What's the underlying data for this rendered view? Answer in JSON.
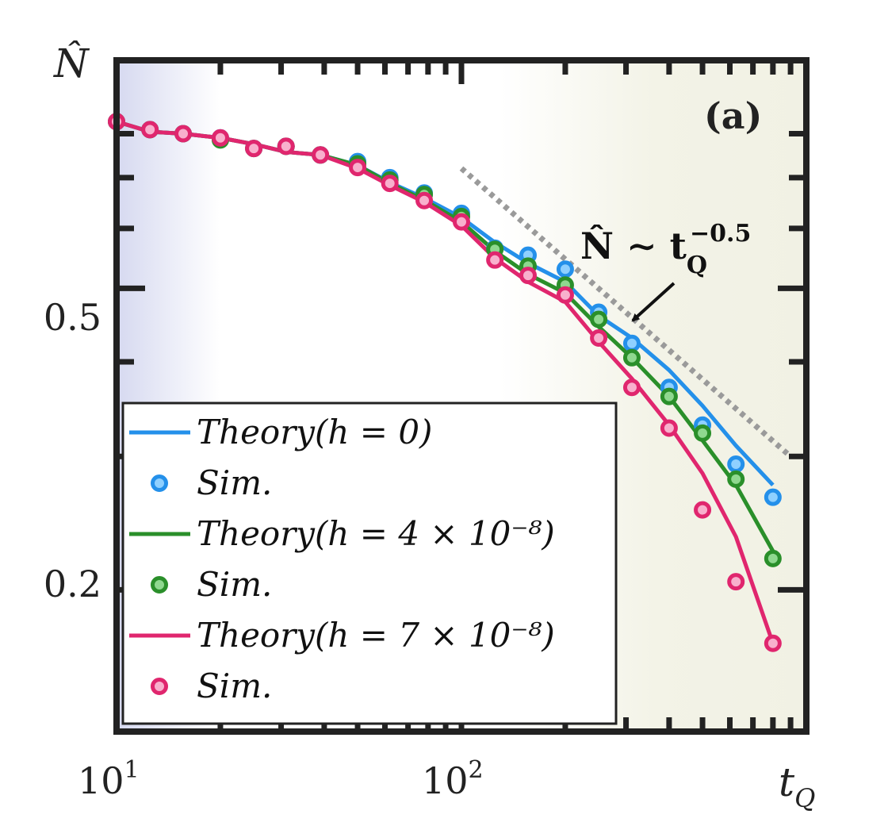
{
  "chart_data": {
    "type": "line",
    "panel_label": "(a)",
    "xlabel": "t",
    "xlabel_sub": "Q",
    "ylabel": "N̂",
    "x_scale": "log",
    "y_scale": "log",
    "xlim": [
      10,
      1000
    ],
    "ylim": [
      0.13,
      1.0
    ],
    "x_ticks": [
      {
        "value": 10,
        "base": "10",
        "exp": "1"
      },
      {
        "value": 100,
        "base": "10",
        "exp": "2"
      }
    ],
    "y_ticks": [
      {
        "value": 0.5,
        "label": "0.5"
      },
      {
        "value": 0.2,
        "label": "0.2"
      }
    ],
    "grid": false,
    "legend_position": "bottom-left",
    "annotation": {
      "text_main": "N̂ ∼ t",
      "text_sub": "Q",
      "text_sup": "−0.5",
      "guide_line": [
        [
          100,
          0.72
        ],
        [
          900,
          0.3
        ]
      ]
    },
    "series": [
      {
        "name": "Theory(h = 0)",
        "sim_name": "Sim.",
        "color": "#2490ea",
        "x": [
          10,
          12.5,
          15.6,
          20,
          25,
          31,
          39,
          50,
          62,
          78,
          100,
          125,
          156,
          200,
          250,
          312,
          400,
          500,
          625,
          800
        ],
        "theory": [
          0.83,
          0.805,
          0.8,
          0.79,
          0.775,
          0.757,
          0.75,
          0.727,
          0.69,
          0.658,
          0.62,
          0.575,
          0.54,
          0.51,
          0.46,
          0.43,
          0.39,
          0.35,
          0.31,
          0.275
        ],
        "sim": [
          0.83,
          0.81,
          0.8,
          0.79,
          0.765,
          0.77,
          0.75,
          0.735,
          0.7,
          0.668,
          0.628,
          0.565,
          0.553,
          0.53,
          0.465,
          0.423,
          0.37,
          0.33,
          0.293,
          0.265
        ]
      },
      {
        "name": "Theory(h = 4 × 10⁻⁸)",
        "sim_name": "Sim.",
        "color": "#2a8f2a",
        "x": [
          10,
          12.5,
          15.6,
          20,
          25,
          31,
          39,
          50,
          62,
          78,
          100,
          125,
          156,
          200,
          250,
          312,
          400,
          500,
          625,
          800
        ],
        "theory": [
          0.83,
          0.805,
          0.8,
          0.79,
          0.775,
          0.757,
          0.75,
          0.727,
          0.688,
          0.654,
          0.612,
          0.56,
          0.522,
          0.493,
          0.445,
          0.405,
          0.36,
          0.315,
          0.275,
          0.225
        ],
        "sim": [
          0.83,
          0.81,
          0.8,
          0.785,
          0.765,
          0.77,
          0.75,
          0.73,
          0.695,
          0.665,
          0.622,
          0.563,
          0.535,
          0.505,
          0.455,
          0.405,
          0.36,
          0.322,
          0.28,
          0.22
        ]
      },
      {
        "name": "Theory(h = 7 × 10⁻⁸)",
        "sim_name": "Sim.",
        "color": "#e0266e",
        "x": [
          10,
          12.5,
          15.6,
          20,
          25,
          31,
          39,
          50,
          62,
          78,
          100,
          125,
          156,
          200,
          250,
          312,
          400,
          500,
          625,
          800
        ],
        "theory": [
          0.83,
          0.805,
          0.8,
          0.79,
          0.775,
          0.757,
          0.75,
          0.72,
          0.684,
          0.65,
          0.605,
          0.548,
          0.51,
          0.48,
          0.425,
          0.38,
          0.33,
          0.285,
          0.235,
          0.17
        ],
        "sim": [
          0.83,
          0.81,
          0.8,
          0.79,
          0.765,
          0.77,
          0.75,
          0.722,
          0.688,
          0.653,
          0.612,
          0.545,
          0.52,
          0.49,
          0.43,
          0.37,
          0.327,
          0.255,
          0.205,
          0.17
        ]
      }
    ]
  }
}
